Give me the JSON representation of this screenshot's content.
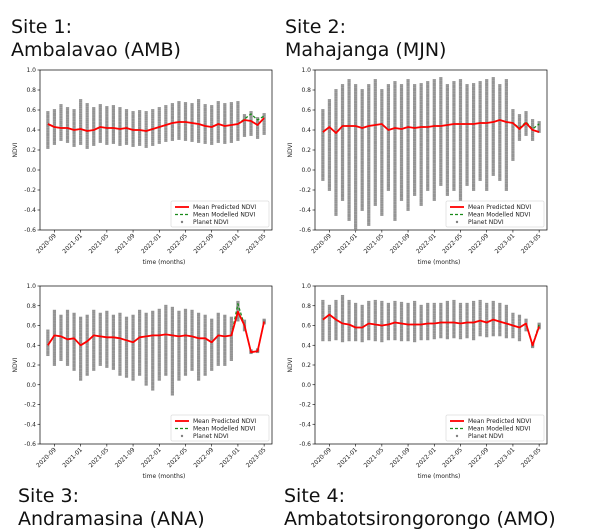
{
  "chart_data": [
    {
      "type": "line",
      "site_label": "Site 1:",
      "site_name": "Ambalavao (AMB)",
      "title": "",
      "xlabel": "time (months)",
      "ylabel": "NDVI",
      "ylim": [
        -0.6,
        1.0
      ],
      "yticks": [
        "1.0",
        "0.8",
        "0.6",
        "0.4",
        "0.2",
        "0.0",
        "-0.2",
        "-0.4",
        "-0.6"
      ],
      "xticks": [
        "2020-09",
        "2021-01",
        "2021-05",
        "2021-09",
        "2022-01",
        "2022-05",
        "2022-09",
        "2023-01",
        "2023-05"
      ],
      "legend": "bottom-right",
      "grid": false,
      "x": [
        "2020-08",
        "2020-09",
        "2020-10",
        "2020-11",
        "2020-12",
        "2021-01",
        "2021-02",
        "2021-03",
        "2021-04",
        "2021-05",
        "2021-06",
        "2021-07",
        "2021-08",
        "2021-09",
        "2021-10",
        "2021-11",
        "2021-12",
        "2022-01",
        "2022-02",
        "2022-03",
        "2022-04",
        "2022-05",
        "2022-06",
        "2022-07",
        "2022-08",
        "2022-09",
        "2022-10",
        "2022-11",
        "2022-12",
        "2023-01",
        "2023-02",
        "2023-03",
        "2023-04",
        "2023-05"
      ],
      "series": [
        {
          "name": "Mean Predicted NDVI",
          "color": "#ff0000",
          "style": "solid",
          "values": [
            0.46,
            0.43,
            0.42,
            0.42,
            0.4,
            0.41,
            0.39,
            0.4,
            0.43,
            0.42,
            0.42,
            0.41,
            0.42,
            0.4,
            0.4,
            0.39,
            0.41,
            0.43,
            0.45,
            0.47,
            0.48,
            0.48,
            0.47,
            0.46,
            0.44,
            0.43,
            0.46,
            0.44,
            0.45,
            0.46,
            0.5,
            0.49,
            0.45,
            0.52
          ]
        },
        {
          "name": "Mean Modelled NDVI",
          "color": "#1a8a1a",
          "style": "dashed",
          "values": [
            0.46,
            0.43,
            0.42,
            0.42,
            0.4,
            0.41,
            0.39,
            0.4,
            0.43,
            0.42,
            0.42,
            0.41,
            0.42,
            0.4,
            0.4,
            0.39,
            0.41,
            0.43,
            0.45,
            0.47,
            0.48,
            0.48,
            0.47,
            0.46,
            0.44,
            0.43,
            0.46,
            0.44,
            0.45,
            0.46,
            0.51,
            0.56,
            0.5,
            0.54
          ]
        }
      ],
      "scatter_name": "Planet NDVI",
      "scatter_color": "#808080",
      "scatter_range": {
        "low": [
          0.22,
          0.26,
          0.3,
          0.28,
          0.24,
          0.26,
          0.22,
          0.25,
          0.28,
          0.26,
          0.27,
          0.25,
          0.26,
          0.24,
          0.25,
          0.23,
          0.25,
          0.27,
          0.29,
          0.3,
          0.31,
          0.3,
          0.29,
          0.28,
          0.27,
          0.26,
          0.28,
          0.27,
          0.28,
          0.3,
          0.34,
          0.35,
          0.32,
          0.36
        ],
        "high": [
          0.58,
          0.6,
          0.65,
          0.62,
          0.6,
          0.7,
          0.66,
          0.62,
          0.65,
          0.63,
          0.64,
          0.62,
          0.6,
          0.58,
          0.59,
          0.58,
          0.6,
          0.62,
          0.64,
          0.66,
          0.68,
          0.67,
          0.66,
          0.7,
          0.65,
          0.64,
          0.68,
          0.66,
          0.67,
          0.68,
          0.55,
          0.58,
          0.52,
          0.56
        ]
      }
    },
    {
      "type": "line",
      "site_label": "Site 2:",
      "site_name": "Mahajanga (MJN)",
      "title": "",
      "xlabel": "time (months)",
      "ylabel": "NDVI",
      "ylim": [
        -0.6,
        1.0
      ],
      "yticks": [
        "1.0",
        "0.8",
        "0.6",
        "0.4",
        "0.2",
        "0.0",
        "-0.2",
        "-0.4",
        "-0.6"
      ],
      "xticks": [
        "2020-09",
        "2021-01",
        "2021-05",
        "2021-09",
        "2022-01",
        "2022-05",
        "2022-09",
        "2023-01",
        "2023-05"
      ],
      "legend": "bottom-right",
      "grid": false,
      "x": [
        "2020-08",
        "2020-09",
        "2020-10",
        "2020-11",
        "2020-12",
        "2021-01",
        "2021-02",
        "2021-03",
        "2021-04",
        "2021-05",
        "2021-06",
        "2021-07",
        "2021-08",
        "2021-09",
        "2021-10",
        "2021-11",
        "2021-12",
        "2022-01",
        "2022-02",
        "2022-03",
        "2022-04",
        "2022-05",
        "2022-06",
        "2022-07",
        "2022-08",
        "2022-09",
        "2022-10",
        "2022-11",
        "2022-12",
        "2023-01",
        "2023-02",
        "2023-03",
        "2023-04",
        "2023-05"
      ],
      "series": [
        {
          "name": "Mean Predicted NDVI",
          "color": "#ff0000",
          "style": "solid",
          "values": [
            0.38,
            0.43,
            0.37,
            0.44,
            0.44,
            0.44,
            0.42,
            0.44,
            0.45,
            0.46,
            0.4,
            0.42,
            0.41,
            0.43,
            0.42,
            0.43,
            0.43,
            0.44,
            0.44,
            0.45,
            0.46,
            0.46,
            0.46,
            0.46,
            0.47,
            0.47,
            0.48,
            0.5,
            0.48,
            0.47,
            0.41,
            0.47,
            0.4,
            0.38
          ]
        },
        {
          "name": "Mean Modelled NDVI",
          "color": "#1a8a1a",
          "style": "dashed",
          "values": [
            0.38,
            0.43,
            0.37,
            0.44,
            0.44,
            0.44,
            0.42,
            0.44,
            0.45,
            0.46,
            0.4,
            0.42,
            0.41,
            0.43,
            0.42,
            0.43,
            0.43,
            0.44,
            0.44,
            0.45,
            0.46,
            0.46,
            0.46,
            0.46,
            0.47,
            0.47,
            0.48,
            0.5,
            0.48,
            0.47,
            0.42,
            0.48,
            0.41,
            0.46
          ]
        }
      ],
      "scatter_name": "Planet NDVI",
      "scatter_color": "#808080",
      "scatter_range": {
        "low": [
          -0.1,
          -0.2,
          -0.45,
          -0.3,
          -0.5,
          -0.6,
          -0.4,
          -0.55,
          -0.35,
          -0.45,
          -0.2,
          -0.5,
          -0.3,
          -0.4,
          -0.25,
          -0.35,
          -0.2,
          -0.3,
          -0.15,
          -0.25,
          -0.2,
          -0.3,
          -0.15,
          -0.2,
          -0.1,
          -0.2,
          -0.05,
          -0.1,
          -0.2,
          0.1,
          0.3,
          0.35,
          0.3,
          0.38
        ],
        "high": [
          0.6,
          0.7,
          0.8,
          0.85,
          0.9,
          0.85,
          0.8,
          0.85,
          0.9,
          0.8,
          0.85,
          0.88,
          0.85,
          0.9,
          0.85,
          0.86,
          0.88,
          0.9,
          0.92,
          0.85,
          0.88,
          0.9,
          0.85,
          0.86,
          0.88,
          0.9,
          0.92,
          0.85,
          0.9,
          0.6,
          0.55,
          0.58,
          0.5,
          0.48
        ]
      }
    },
    {
      "type": "line",
      "site_label": "Site 3:",
      "site_name": "Andramasina (ANA)",
      "title": "",
      "xlabel": "time (months)",
      "ylabel": "NDVI",
      "ylim": [
        -0.6,
        1.0
      ],
      "yticks": [
        "1.0",
        "0.8",
        "0.6",
        "0.4",
        "0.2",
        "0.0",
        "-0.2",
        "-0.4",
        "-0.6"
      ],
      "xticks": [
        "2020-09",
        "2021-01",
        "2021-05",
        "2021-09",
        "2022-01",
        "2022-05",
        "2022-09",
        "2023-01",
        "2023-05"
      ],
      "legend": "bottom-right",
      "grid": false,
      "x": [
        "2020-08",
        "2020-09",
        "2020-10",
        "2020-11",
        "2020-12",
        "2021-01",
        "2021-02",
        "2021-03",
        "2021-04",
        "2021-05",
        "2021-06",
        "2021-07",
        "2021-08",
        "2021-09",
        "2021-10",
        "2021-11",
        "2021-12",
        "2022-01",
        "2022-02",
        "2022-03",
        "2022-04",
        "2022-05",
        "2022-06",
        "2022-07",
        "2022-08",
        "2022-09",
        "2022-10",
        "2022-11",
        "2022-12",
        "2023-01",
        "2023-02",
        "2023-03",
        "2023-04",
        "2023-05"
      ],
      "series": [
        {
          "name": "Mean Predicted NDVI",
          "color": "#ff0000",
          "style": "solid",
          "values": [
            0.4,
            0.5,
            0.49,
            0.46,
            0.47,
            0.4,
            0.44,
            0.5,
            0.49,
            0.48,
            0.48,
            0.47,
            0.45,
            0.43,
            0.48,
            0.49,
            0.5,
            0.5,
            0.51,
            0.5,
            0.49,
            0.5,
            0.49,
            0.47,
            0.47,
            0.43,
            0.5,
            0.49,
            0.5,
            0.74,
            0.6,
            0.33,
            0.34,
            0.64
          ]
        },
        {
          "name": "Mean Modelled NDVI",
          "color": "#1a8a1a",
          "style": "dashed",
          "values": [
            0.4,
            0.5,
            0.49,
            0.46,
            0.47,
            0.4,
            0.44,
            0.5,
            0.49,
            0.48,
            0.48,
            0.47,
            0.45,
            0.43,
            0.48,
            0.49,
            0.5,
            0.5,
            0.51,
            0.5,
            0.49,
            0.5,
            0.49,
            0.47,
            0.47,
            0.43,
            0.5,
            0.49,
            0.5,
            0.82,
            0.6,
            0.33,
            0.34,
            0.64
          ]
        }
      ],
      "scatter_name": "Planet NDVI",
      "scatter_color": "#808080",
      "scatter_range": {
        "low": [
          0.3,
          0.2,
          0.25,
          0.2,
          0.15,
          0.05,
          0.1,
          0.15,
          0.2,
          0.18,
          0.16,
          0.1,
          0.08,
          0.05,
          0.1,
          0.0,
          -0.05,
          0.05,
          0.1,
          -0.1,
          0.05,
          0.1,
          0.15,
          0.05,
          0.1,
          0.15,
          0.2,
          0.2,
          0.25,
          0.65,
          0.55,
          0.32,
          0.33,
          0.62
        ],
        "high": [
          0.55,
          0.75,
          0.7,
          0.75,
          0.72,
          0.68,
          0.7,
          0.75,
          0.72,
          0.74,
          0.7,
          0.72,
          0.68,
          0.7,
          0.75,
          0.72,
          0.74,
          0.76,
          0.8,
          0.78,
          0.74,
          0.76,
          0.75,
          0.72,
          0.7,
          0.66,
          0.72,
          0.7,
          0.68,
          0.84,
          0.65,
          0.35,
          0.36,
          0.66
        ]
      }
    },
    {
      "type": "line",
      "site_label": "Site 4:",
      "site_name": "Ambatotsirongorongo (AMO)",
      "title": "",
      "xlabel": "time (months)",
      "ylabel": "NDVI",
      "ylim": [
        -0.6,
        1.0
      ],
      "yticks": [
        "1.0",
        "0.8",
        "0.6",
        "0.4",
        "0.2",
        "0.0",
        "-0.2",
        "-0.4",
        "-0.6"
      ],
      "xticks": [
        "2020-09",
        "2021-01",
        "2021-05",
        "2021-09",
        "2022-01",
        "2022-05",
        "2022-09",
        "2023-01",
        "2023-05"
      ],
      "legend": "bottom-right",
      "grid": false,
      "x": [
        "2020-08",
        "2020-09",
        "2020-10",
        "2020-11",
        "2020-12",
        "2021-01",
        "2021-02",
        "2021-03",
        "2021-04",
        "2021-05",
        "2021-06",
        "2021-07",
        "2021-08",
        "2021-09",
        "2021-10",
        "2021-11",
        "2021-12",
        "2022-01",
        "2022-02",
        "2022-03",
        "2022-04",
        "2022-05",
        "2022-06",
        "2022-07",
        "2022-08",
        "2022-09",
        "2022-10",
        "2022-11",
        "2022-12",
        "2023-01",
        "2023-02",
        "2023-03",
        "2023-04",
        "2023-05"
      ],
      "series": [
        {
          "name": "Mean Predicted NDVI",
          "color": "#ff0000",
          "style": "solid",
          "values": [
            0.66,
            0.71,
            0.66,
            0.62,
            0.61,
            0.58,
            0.58,
            0.62,
            0.61,
            0.6,
            0.61,
            0.63,
            0.62,
            0.61,
            0.61,
            0.61,
            0.62,
            0.62,
            0.63,
            0.63,
            0.63,
            0.62,
            0.63,
            0.63,
            0.65,
            0.63,
            0.66,
            0.64,
            0.62,
            0.6,
            0.58,
            0.62,
            0.4,
            0.59
          ]
        },
        {
          "name": "Mean Modelled NDVI",
          "color": "#1a8a1a",
          "style": "dashed",
          "values": [
            0.66,
            0.71,
            0.66,
            0.62,
            0.61,
            0.58,
            0.58,
            0.62,
            0.61,
            0.6,
            0.61,
            0.63,
            0.62,
            0.61,
            0.61,
            0.61,
            0.62,
            0.62,
            0.63,
            0.63,
            0.63,
            0.62,
            0.63,
            0.63,
            0.65,
            0.63,
            0.66,
            0.64,
            0.62,
            0.6,
            0.58,
            0.62,
            0.4,
            0.61
          ]
        }
      ],
      "scatter_name": "Planet NDVI",
      "scatter_color": "#808080",
      "scatter_range": {
        "low": [
          0.45,
          0.45,
          0.46,
          0.44,
          0.45,
          0.45,
          0.44,
          0.46,
          0.45,
          0.44,
          0.46,
          0.46,
          0.45,
          0.45,
          0.44,
          0.46,
          0.46,
          0.47,
          0.48,
          0.47,
          0.48,
          0.47,
          0.48,
          0.46,
          0.5,
          0.49,
          0.5,
          0.5,
          0.48,
          0.48,
          0.45,
          0.55,
          0.38,
          0.57
        ],
        "high": [
          0.85,
          0.8,
          0.85,
          0.9,
          0.85,
          0.82,
          0.8,
          0.84,
          0.85,
          0.84,
          0.82,
          0.84,
          0.83,
          0.82,
          0.84,
          0.8,
          0.82,
          0.82,
          0.82,
          0.84,
          0.85,
          0.82,
          0.82,
          0.84,
          0.85,
          0.82,
          0.84,
          0.82,
          0.8,
          0.72,
          0.7,
          0.66,
          0.42,
          0.62
        ]
      }
    }
  ]
}
